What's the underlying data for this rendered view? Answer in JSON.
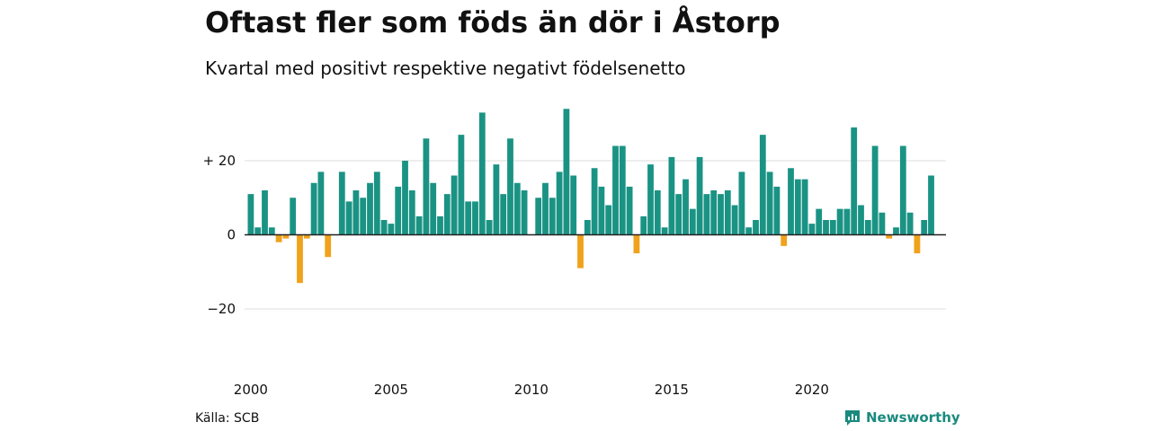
{
  "title": "Oftast fler som föds än dör i Åstorp",
  "subtitle": "Kvartal med positivt respektive negativt födelsenetto",
  "source": "Källa: SCB",
  "brand": {
    "name": "Newsworthy",
    "icon": "newsworthy-logo-icon",
    "color": "#1a8a7e"
  },
  "colors": {
    "positive": "#1a9384",
    "negative": "#f0a21b",
    "grid": "#dddddd",
    "zero": "#222222"
  },
  "chart_data": {
    "type": "bar",
    "x_start_year": 2000,
    "x_start_quarter": 1,
    "periods_per_year": 4,
    "values": [
      11,
      2,
      12,
      2,
      -2,
      -1,
      10,
      -13,
      -1,
      14,
      17,
      -6,
      0,
      17,
      9,
      12,
      10,
      14,
      17,
      4,
      3,
      13,
      20,
      12,
      5,
      26,
      14,
      5,
      11,
      16,
      27,
      9,
      9,
      33,
      4,
      19,
      11,
      26,
      14,
      12,
      0,
      10,
      14,
      10,
      17,
      34,
      16,
      -9,
      4,
      18,
      13,
      8,
      24,
      24,
      13,
      -5,
      5,
      19,
      12,
      2,
      21,
      11,
      15,
      7,
      21,
      11,
      12,
      11,
      12,
      8,
      17,
      2,
      4,
      27,
      17,
      13,
      -3,
      18,
      15,
      15,
      3,
      7,
      4,
      4,
      7,
      7,
      29,
      8,
      4,
      24,
      6,
      -1,
      2,
      24,
      6,
      -5,
      4,
      16
    ],
    "xticks": [
      "2000",
      "2005",
      "2010",
      "2015",
      "2020"
    ],
    "yticks": [
      {
        "value": 20,
        "label": "+ 20"
      },
      {
        "value": 0,
        "label": "0"
      },
      {
        "value": -20,
        "label": "−20"
      }
    ],
    "ylim": [
      -30,
      38
    ],
    "grid": true
  }
}
